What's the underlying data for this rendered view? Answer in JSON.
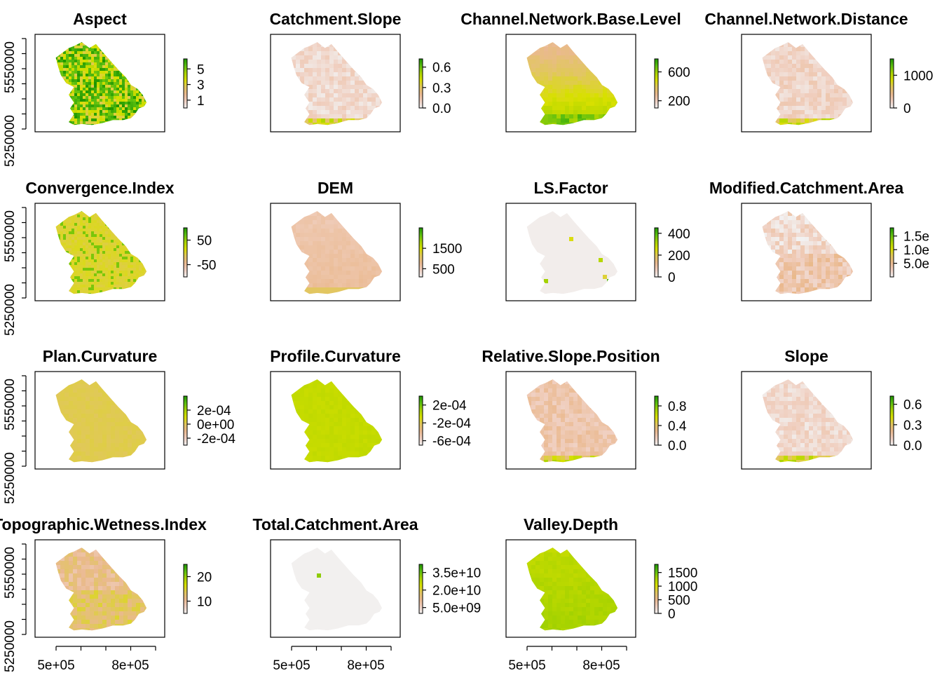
{
  "colors": {
    "ramp": [
      "#f2f2f2",
      "#f0cfc0",
      "#eab98f",
      "#e1c75e",
      "#d8e000",
      "#a8d300",
      "#5bbf10",
      "#1e9600"
    ],
    "frame": "#000000",
    "background": "#ffffff"
  },
  "chart_data": [
    {
      "type": "heatmap",
      "title": "Aspect",
      "legend_ticks": [
        "5",
        "3",
        "1"
      ],
      "legend_range": [
        0,
        6.28
      ],
      "tick_values": [
        5,
        3,
        1
      ],
      "map_tone": 0.82,
      "texture": "noisy",
      "y_tick_labels": [
        "5550000",
        "5250000"
      ],
      "x_tick_labels": []
    },
    {
      "type": "heatmap",
      "title": "Catchment.Slope",
      "legend_ticks": [
        "0.6",
        "0.3",
        "0.0"
      ],
      "legend_range": [
        0,
        0.72
      ],
      "tick_values": [
        0.6,
        0.3,
        0.0
      ],
      "map_tone": 0.1,
      "texture": "fine",
      "y_tick_labels": [],
      "x_tick_labels": []
    },
    {
      "type": "heatmap",
      "title": "Channel.Network.Base.Level",
      "legend_ticks": [
        "600",
        "200"
      ],
      "legend_range": [
        100,
        780
      ],
      "tick_values": [
        600,
        200
      ],
      "map_tone": 0.55,
      "texture": "south-high",
      "y_tick_labels": [],
      "x_tick_labels": []
    },
    {
      "type": "heatmap",
      "title": "Channel.Network.Distance",
      "legend_ticks": [
        "1000",
        "0"
      ],
      "legend_range": [
        0,
        1500
      ],
      "tick_values": [
        1000,
        0
      ],
      "map_tone": 0.12,
      "texture": "fine",
      "y_tick_labels": [],
      "x_tick_labels": []
    },
    {
      "type": "heatmap",
      "title": "Convergence.Index",
      "legend_ticks": [
        "50",
        "-50"
      ],
      "legend_range": [
        -100,
        100
      ],
      "tick_values": [
        50,
        -50
      ],
      "map_tone": 0.5,
      "texture": "speckle",
      "y_tick_labels": [
        "5550000",
        "5250000"
      ],
      "x_tick_labels": []
    },
    {
      "type": "heatmap",
      "title": "DEM",
      "legend_ticks": [
        "1500",
        "500"
      ],
      "legend_range": [
        100,
        2500
      ],
      "tick_values": [
        1500,
        500
      ],
      "map_tone": 0.22,
      "texture": "smooth",
      "y_tick_labels": [],
      "x_tick_labels": []
    },
    {
      "type": "heatmap",
      "title": "LS.Factor",
      "legend_ticks": [
        "400",
        "200",
        "0"
      ],
      "legend_range": [
        0,
        450
      ],
      "tick_values": [
        400,
        200,
        0
      ],
      "map_tone": 0.02,
      "texture": "sparse",
      "y_tick_labels": [],
      "x_tick_labels": []
    },
    {
      "type": "heatmap",
      "title": "Modified.Catchment.Area",
      "legend_ticks": [
        "1.5e",
        "1.0e",
        "5.0e"
      ],
      "legend_range": [
        0,
        1.8
      ],
      "tick_values": [
        1.5,
        1.0,
        0.5
      ],
      "map_tone": 0.1,
      "texture": "patchy",
      "y_tick_labels": [],
      "x_tick_labels": []
    },
    {
      "type": "heatmap",
      "title": "Plan.Curvature",
      "legend_ticks": [
        "2e-04",
        "0e+00",
        "-2e-04"
      ],
      "legend_range": [
        -0.0003,
        0.0004
      ],
      "tick_values": [
        0.0002,
        0.0,
        -0.0002
      ],
      "map_tone": 0.45,
      "texture": "flat",
      "y_tick_labels": [
        "5550000",
        "5250000"
      ],
      "x_tick_labels": []
    },
    {
      "type": "heatmap",
      "title": "Profile.Curvature",
      "legend_ticks": [
        "2e-04",
        "-2e-04",
        "-6e-04"
      ],
      "legend_range": [
        -0.0007,
        0.0004
      ],
      "tick_values": [
        0.0002,
        -0.0002,
        -0.0006
      ],
      "map_tone": 0.63,
      "texture": "flat",
      "y_tick_labels": [],
      "x_tick_labels": []
    },
    {
      "type": "heatmap",
      "title": "Relative.Slope.Position",
      "legend_ticks": [
        "0.8",
        "0.4",
        "0.0"
      ],
      "legend_range": [
        0,
        1.0
      ],
      "tick_values": [
        0.8,
        0.4,
        0.0
      ],
      "map_tone": 0.2,
      "texture": "fine",
      "y_tick_labels": [],
      "x_tick_labels": []
    },
    {
      "type": "heatmap",
      "title": "Slope",
      "legend_ticks": [
        "0.6",
        "0.3",
        "0.0"
      ],
      "legend_range": [
        0,
        0.72
      ],
      "tick_values": [
        0.6,
        0.3,
        0.0
      ],
      "map_tone": 0.1,
      "texture": "fine",
      "y_tick_labels": [],
      "x_tick_labels": []
    },
    {
      "type": "heatmap",
      "title": "Topographic.Wetness.Index",
      "legend_ticks": [
        "20",
        "10"
      ],
      "legend_range": [
        5,
        25
      ],
      "tick_values": [
        20,
        10
      ],
      "map_tone": 0.3,
      "texture": "patchy",
      "y_tick_labels": [
        "5550000",
        "5250000"
      ],
      "x_tick_labels": [
        "5e+05",
        "8e+05"
      ]
    },
    {
      "type": "heatmap",
      "title": "Total.Catchment.Area",
      "legend_ticks": [
        "3.5e+10",
        "2.0e+10",
        "5.0e+09"
      ],
      "legend_range": [
        0,
        42000000000.0
      ],
      "tick_values": [
        35000000000.0,
        20000000000.0,
        5000000000.0
      ],
      "map_tone": 0.01,
      "texture": "sparse",
      "y_tick_labels": [],
      "x_tick_labels": [
        "5e+05",
        "8e+05"
      ]
    },
    {
      "type": "heatmap",
      "title": "Valley.Depth",
      "legend_ticks": [
        "1500",
        "1000",
        "500",
        "0"
      ],
      "legend_range": [
        0,
        1800
      ],
      "tick_values": [
        1500,
        1000,
        500,
        0
      ],
      "map_tone": 0.68,
      "texture": "smooth",
      "y_tick_labels": [],
      "x_tick_labels": [
        "5e+05",
        "8e+05"
      ]
    }
  ]
}
